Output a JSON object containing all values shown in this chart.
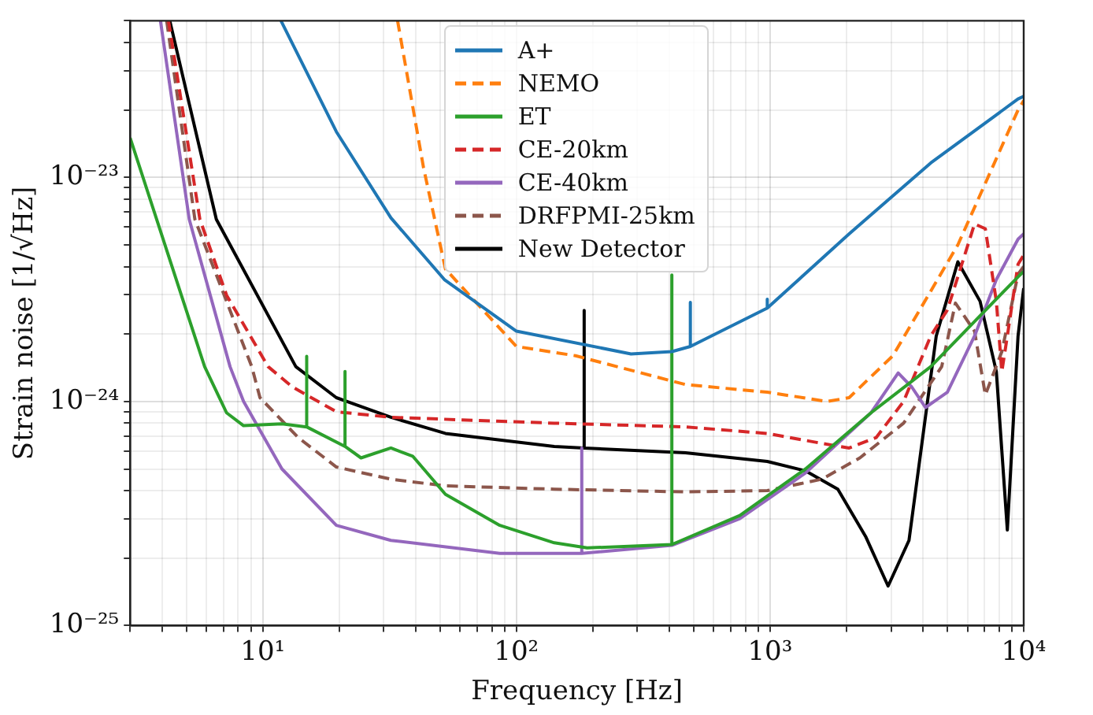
{
  "chart_data": {
    "type": "line",
    "xlabel": "Frequency [Hz]",
    "ylabel": "Strain noise [1/√Hz]",
    "log": "xy",
    "grid": true,
    "legend": "top",
    "marker": "none",
    "xlim": [
      3,
      10000
    ],
    "ylim": [
      1e-25,
      5e-23
    ],
    "xticks": [
      {
        "value": 3,
        "label": null
      },
      {
        "value": 4,
        "label": null
      },
      {
        "value": 5,
        "label": null
      },
      {
        "value": 6,
        "label": null
      },
      {
        "value": 7,
        "label": null
      },
      {
        "value": 8,
        "label": null
      },
      {
        "value": 9,
        "label": null
      },
      {
        "value": 10,
        "label": "10¹"
      },
      {
        "value": 20,
        "label": null
      },
      {
        "value": 30,
        "label": null
      },
      {
        "value": 40,
        "label": null
      },
      {
        "value": 50,
        "label": null
      },
      {
        "value": 60,
        "label": null
      },
      {
        "value": 70,
        "label": null
      },
      {
        "value": 80,
        "label": null
      },
      {
        "value": 90,
        "label": null
      },
      {
        "value": 100,
        "label": "10²"
      },
      {
        "value": 200,
        "label": null
      },
      {
        "value": 300,
        "label": null
      },
      {
        "value": 400,
        "label": null
      },
      {
        "value": 500,
        "label": null
      },
      {
        "value": 600,
        "label": null
      },
      {
        "value": 700,
        "label": null
      },
      {
        "value": 800,
        "label": null
      },
      {
        "value": 900,
        "label": null
      },
      {
        "value": 1000,
        "label": "10³"
      },
      {
        "value": 2000,
        "label": null
      },
      {
        "value": 3000,
        "label": null
      },
      {
        "value": 4000,
        "label": null
      },
      {
        "value": 5000,
        "label": null
      },
      {
        "value": 6000,
        "label": null
      },
      {
        "value": 7000,
        "label": null
      },
      {
        "value": 8000,
        "label": null
      },
      {
        "value": 9000,
        "label": null
      },
      {
        "value": 10000,
        "label": "10⁴"
      }
    ],
    "yticks": [
      {
        "value": 1e-25,
        "label": "10⁻²⁵"
      },
      {
        "value": 2e-25,
        "label": null
      },
      {
        "value": 3e-25,
        "label": null
      },
      {
        "value": 4e-25,
        "label": null
      },
      {
        "value": 5e-25,
        "label": null
      },
      {
        "value": 6e-25,
        "label": null
      },
      {
        "value": 7e-25,
        "label": null
      },
      {
        "value": 8e-25,
        "label": null
      },
      {
        "value": 9e-25,
        "label": null
      },
      {
        "value": 1e-24,
        "label": "10⁻²⁴"
      },
      {
        "value": 2e-24,
        "label": null
      },
      {
        "value": 3e-24,
        "label": null
      },
      {
        "value": 4e-24,
        "label": null
      },
      {
        "value": 5e-24,
        "label": null
      },
      {
        "value": 6e-24,
        "label": null
      },
      {
        "value": 7e-24,
        "label": null
      },
      {
        "value": 8e-24,
        "label": null
      },
      {
        "value": 9e-24,
        "label": null
      },
      {
        "value": 1e-23,
        "label": "10⁻²³"
      },
      {
        "value": 2e-23,
        "label": null
      },
      {
        "value": 3e-23,
        "label": null
      },
      {
        "value": 4e-23,
        "label": null
      },
      {
        "value": 5e-23,
        "label": null
      }
    ],
    "series": [
      {
        "name": "A+",
        "color": "#1f77b4",
        "line_style": "solid",
        "x": [
          11.8,
          19.5,
          32,
          52,
          100,
          283,
          410,
          485,
          485,
          485,
          975,
          975,
          975,
          2050,
          4300,
          9500,
          10000
        ],
        "values": [
          5e-23,
          1.6e-23,
          6.6e-24,
          3.5e-24,
          2.06e-24,
          1.63e-24,
          1.67e-24,
          1.76e-24,
          2.77e-24,
          1.76e-24,
          2.61e-24,
          2.86e-24,
          2.61e-24,
          5.6e-24,
          1.16e-23,
          2.24e-23,
          2.3e-23
        ]
      },
      {
        "name": "NEMO",
        "color": "#ff7f0e",
        "line_style": "dashed",
        "x": [
          34,
          43,
          52.5,
          100,
          171,
          464,
          975,
          1680,
          2050,
          3050,
          5500,
          9500,
          10000
        ],
        "values": [
          5e-23,
          1.11e-23,
          3.9e-24,
          1.76e-24,
          1.6e-24,
          1.19e-24,
          1.1e-24,
          1e-24,
          1.04e-24,
          1.6e-24,
          5e-24,
          2e-23,
          2.2e-23
        ]
      },
      {
        "name": "ET",
        "color": "#2ca02c",
        "line_style": "solid",
        "x": [
          3,
          5.9,
          7.2,
          8.4,
          11.9,
          14.9,
          14.9,
          14.9,
          21.1,
          21.1,
          21.1,
          24.4,
          32,
          39,
          52.5,
          86,
          141,
          190,
          410,
          410,
          410,
          760,
          1380,
          2500,
          4300,
          7060,
          9500,
          10000
        ],
        "values": [
          1.5e-23,
          1.43e-24,
          8.9e-25,
          7.8e-25,
          7.95e-25,
          7.7e-25,
          1.59e-24,
          7.7e-25,
          6.3e-25,
          1.36e-24,
          6.3e-25,
          5.6e-25,
          6.2e-25,
          5.7e-25,
          3.85e-25,
          2.8e-25,
          2.34e-25,
          2.22e-25,
          2.3e-25,
          3.67e-24,
          2.3e-25,
          3.1e-25,
          5e-25,
          8.9e-25,
          1.43e-24,
          2.55e-24,
          3.6e-24,
          3.8e-24
        ]
      },
      {
        "name": "CE-20km",
        "color": "#d62728",
        "line_style": "dashed",
        "x": [
          4.25,
          5.65,
          7.2,
          10.5,
          13.1,
          19.5,
          32,
          141,
          464,
          975,
          1600,
          2050,
          2620,
          3360,
          4300,
          5000,
          6400,
          7060,
          7800,
          8200,
          8620,
          9500,
          10000
        ],
        "values": [
          5e-23,
          6.5e-24,
          2.98e-24,
          1.43e-24,
          1.16e-24,
          9e-25,
          8.5e-25,
          8e-25,
          7.7e-25,
          7.2e-25,
          6.5e-25,
          6.2e-25,
          6.9e-25,
          1e-24,
          1.96e-24,
          2.56e-24,
          6.2e-24,
          5.9e-24,
          2.8e-24,
          1.36e-24,
          1.96e-24,
          4.1e-24,
          4.5e-24
        ]
      },
      {
        "name": "CE-40km",
        "color": "#9467bd",
        "line_style": "solid",
        "x": [
          3.95,
          5.13,
          7.43,
          8.4,
          11.9,
          19.5,
          32,
          86,
          181,
          181,
          181,
          410,
          760,
          1380,
          2500,
          3200,
          3620,
          4100,
          5000,
          6400,
          7800,
          9500,
          10000
        ],
        "values": [
          5e-23,
          6.5e-24,
          1.43e-24,
          1e-24,
          5e-25,
          2.8e-25,
          2.4e-25,
          2.1e-25,
          2.1e-25,
          6.2e-25,
          2.1e-25,
          2.28e-25,
          3e-25,
          4.8e-25,
          8.9e-25,
          1.34e-24,
          1.16e-24,
          9.4e-25,
          1.1e-24,
          1.96e-24,
          3.5e-24,
          5.3e-24,
          5.6e-24
        ]
      },
      {
        "name": "DRFPMI-25km",
        "color": "#8c564b",
        "line_style": "dashed",
        "x": [
          4.18,
          5.4,
          9.05,
          9.75,
          13.8,
          19.5,
          32,
          52.5,
          141,
          464,
          975,
          1600,
          2260,
          3360,
          4750,
          5380,
          6400,
          7060,
          8200,
          9500,
          10000
        ],
        "values": [
          5e-23,
          6.5e-24,
          1.43e-24,
          1.04e-24,
          6.9e-25,
          5.1e-25,
          4.5e-25,
          4.2e-25,
          4.06e-25,
          3.95e-25,
          4e-25,
          4.5e-25,
          5.6e-25,
          8e-25,
          1.43e-24,
          2.75e-24,
          2.06e-24,
          1.07e-24,
          1.67e-24,
          3.7e-24,
          4e-24
        ]
      },
      {
        "name": "New Detector",
        "color": "#000000",
        "line_style": "solid",
        "x": [
          4.3,
          6.56,
          13.5,
          19.5,
          32,
          52.5,
          141,
          185,
          185,
          185,
          464,
          975,
          1380,
          1850,
          2380,
          2920,
          3530,
          4520,
          5500,
          6730,
          7800,
          8620,
          9500,
          10000
        ],
        "values": [
          5e-23,
          6.5e-24,
          1.43e-24,
          1.04e-24,
          8.5e-25,
          7.2e-25,
          6.3e-25,
          6.2e-25,
          2.55e-24,
          6.2e-25,
          5.9e-25,
          5.4e-25,
          4.9e-25,
          4.06e-25,
          2.5e-25,
          1.5e-25,
          2.4e-25,
          1.96e-24,
          4.2e-24,
          2.8e-24,
          1.36e-24,
          2.67e-25,
          1.96e-24,
          3.2e-24
        ]
      }
    ]
  }
}
